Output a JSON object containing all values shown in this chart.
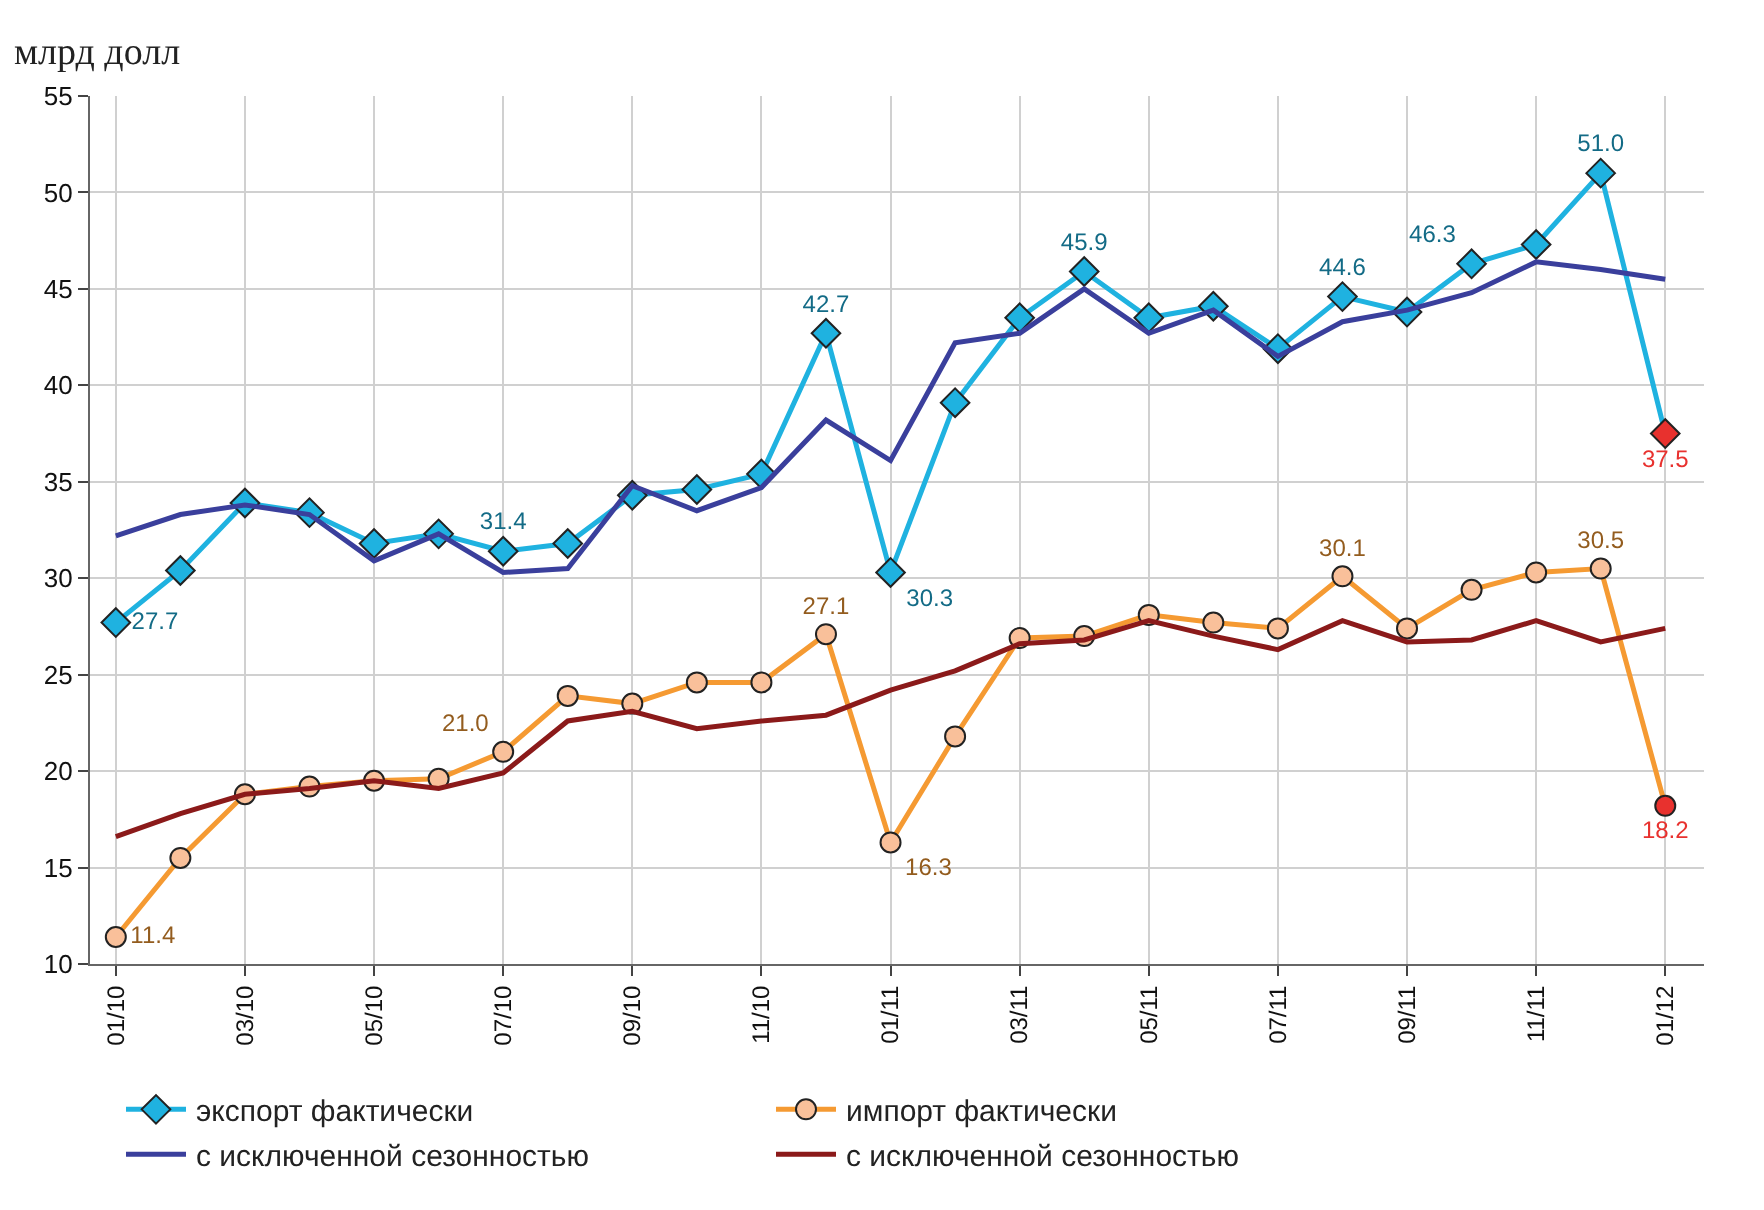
{
  "chart_data": {
    "type": "line",
    "ylabel": "млрд долл",
    "categories": [
      "01/10",
      null,
      "03/10",
      null,
      "05/10",
      null,
      "07/10",
      null,
      "09/10",
      null,
      "11/10",
      null,
      "01/11",
      null,
      "03/11",
      null,
      "05/11",
      null,
      "07/11",
      null,
      "09/11",
      null,
      "11/11",
      null,
      "01/12"
    ],
    "ylim": [
      10,
      55
    ],
    "yticks": [
      10,
      15,
      20,
      25,
      30,
      35,
      40,
      45,
      50,
      55
    ],
    "grid": true,
    "legend": "bottom",
    "series": [
      {
        "name": "экспорт фактически",
        "color": "#1fb2e0",
        "marker": "diamond",
        "colors": [
          "#1fb2e0",
          "#1fb2e0",
          "#1fb2e0",
          "#1fb2e0",
          "#1fb2e0",
          "#1fb2e0",
          "#1fb2e0",
          "#1fb2e0",
          "#1fb2e0",
          "#1fb2e0",
          "#1fb2e0",
          "#1fb2e0",
          "#1fb2e0",
          "#1fb2e0",
          "#1fb2e0",
          "#1fb2e0",
          "#1fb2e0",
          "#1fb2e0",
          "#1fb2e0",
          "#1fb2e0",
          "#1fb2e0",
          "#1fb2e0",
          "#1fb2e0",
          "#1fb2e0",
          "#e8312e"
        ],
        "values": [
          27.7,
          30.4,
          33.9,
          33.4,
          31.8,
          32.3,
          31.4,
          31.8,
          34.3,
          34.6,
          35.4,
          42.7,
          30.3,
          39.1,
          43.5,
          45.9,
          43.5,
          44.1,
          41.9,
          44.6,
          43.8,
          46.3,
          47.3,
          51.0,
          37.5
        ],
        "value_labels": [
          "27.7",
          null,
          null,
          null,
          null,
          null,
          "31.4",
          null,
          null,
          null,
          null,
          "42.7",
          "30.3",
          null,
          null,
          "45.9",
          null,
          null,
          null,
          "44.6",
          null,
          "46.3",
          null,
          "51.0",
          "37.5"
        ]
      },
      {
        "name": "импорт фактически",
        "color": "#f59a32",
        "marker": "circle",
        "colors": [
          "#f9c09a",
          "#f9c09a",
          "#f9c09a",
          "#f9c09a",
          "#f9c09a",
          "#f9c09a",
          "#f9c09a",
          "#f9c09a",
          "#f9c09a",
          "#f9c09a",
          "#f9c09a",
          "#f9c09a",
          "#f9c09a",
          "#f9c09a",
          "#f9c09a",
          "#f9c09a",
          "#f9c09a",
          "#f9c09a",
          "#f9c09a",
          "#f9c09a",
          "#f9c09a",
          "#f9c09a",
          "#f9c09a",
          "#f9c09a",
          "#e8312e"
        ],
        "values": [
          11.4,
          15.5,
          18.8,
          19.2,
          19.5,
          19.6,
          21.0,
          23.9,
          23.5,
          24.6,
          24.6,
          27.1,
          16.3,
          21.8,
          26.9,
          27.0,
          28.1,
          27.7,
          27.4,
          30.1,
          27.4,
          29.4,
          30.3,
          30.5,
          18.2
        ],
        "value_labels": [
          "11.4",
          null,
          null,
          null,
          null,
          null,
          "21.0",
          null,
          null,
          null,
          null,
          "27.1",
          "16.3",
          null,
          null,
          null,
          null,
          null,
          null,
          "30.1",
          null,
          null,
          null,
          "30.5",
          "18.2"
        ]
      },
      {
        "name": "с исключенной сезонностью",
        "color": "#3a3f9c",
        "marker": "none",
        "values": [
          32.2,
          33.3,
          33.8,
          33.3,
          30.9,
          32.3,
          30.3,
          30.5,
          34.8,
          33.5,
          34.7,
          38.2,
          36.1,
          42.2,
          42.7,
          45.0,
          42.7,
          43.9,
          41.5,
          43.3,
          43.9,
          44.8,
          46.4,
          46.0,
          45.5
        ]
      },
      {
        "name": "с исключенной сезонностью",
        "color": "#8b1a1a",
        "marker": "none",
        "values": [
          16.6,
          17.8,
          18.8,
          19.1,
          19.5,
          19.1,
          19.9,
          22.6,
          23.1,
          22.2,
          22.6,
          22.9,
          24.2,
          25.2,
          26.6,
          26.8,
          27.8,
          27.0,
          26.3,
          27.8,
          26.7,
          26.8,
          27.8,
          26.7,
          27.4
        ]
      }
    ]
  }
}
